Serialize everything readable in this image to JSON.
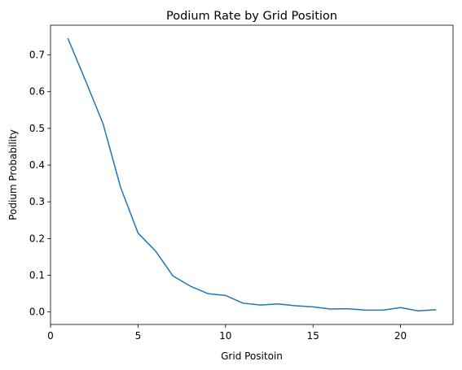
{
  "chart_data": {
    "type": "line",
    "title": "Podium Rate by Grid Position",
    "xlabel": "Grid Positoin",
    "ylabel": "Podium Probability",
    "xlim": [
      0,
      23
    ],
    "ylim": [
      -0.034,
      0.781
    ],
    "xticks": [
      0,
      5,
      10,
      15,
      20
    ],
    "yticks": [
      0.0,
      0.1,
      0.2,
      0.3,
      0.4,
      0.5,
      0.6,
      0.7
    ],
    "grid": false,
    "series": [
      {
        "color": "#1f77b4",
        "x": [
          1,
          2,
          3,
          4,
          5,
          6,
          7,
          8,
          9,
          10,
          11,
          12,
          13,
          14,
          15,
          16,
          17,
          18,
          19,
          20,
          21,
          22
        ],
        "y": [
          0.744,
          0.63,
          0.513,
          0.34,
          0.215,
          0.166,
          0.098,
          0.07,
          0.05,
          0.045,
          0.024,
          0.019,
          0.022,
          0.017,
          0.014,
          0.008,
          0.009,
          0.005,
          0.005,
          0.012,
          0.003,
          0.006
        ]
      }
    ]
  }
}
